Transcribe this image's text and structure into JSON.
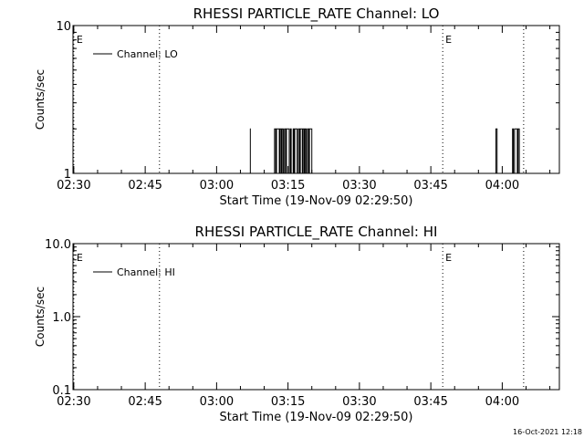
{
  "chart_data": [
    {
      "type": "line",
      "title": "RHESSI PARTICLE_RATE Channel: LO",
      "xlabel": "Start Time (19-Nov-09 02:29:50)",
      "ylabel": "Counts/sec",
      "y_scale": "log",
      "ylim": [
        1,
        10
      ],
      "y_tick_labels": [
        "1",
        "10"
      ],
      "x_range": [
        "02:29:50",
        "04:12:00"
      ],
      "x_tick_labels": [
        "02:30",
        "02:45",
        "03:00",
        "03:15",
        "03:30",
        "03:45",
        "04:00"
      ],
      "legend": "Channel: LO",
      "legend_position": "top-left",
      "event_lines": [
        {
          "label": "E",
          "time": "02:30:00"
        },
        {
          "label": "",
          "time": "02:48:00"
        },
        {
          "label": "E",
          "time": "03:47:30"
        },
        {
          "label": "",
          "time": "04:04:30"
        }
      ],
      "series": [
        {
          "name": "Channel: LO",
          "x": [
            "03:07:00",
            "03:07:05",
            "03:07:25",
            "03:12:00",
            "03:12:10",
            "03:12:25",
            "03:12:35",
            "03:13:10",
            "03:13:20",
            "03:13:35",
            "03:13:45",
            "03:14:00",
            "03:14:15",
            "03:14:30",
            "03:14:40",
            "03:15:00",
            "03:15:15",
            "03:15:30",
            "03:15:40",
            "03:16:05",
            "03:16:15",
            "03:16:25",
            "03:16:40",
            "03:16:55",
            "03:17:10",
            "03:17:25",
            "03:17:35",
            "03:18:00",
            "03:18:10",
            "03:18:25",
            "03:18:35",
            "03:18:50",
            "03:19:05",
            "03:19:20",
            "03:19:30",
            "03:20:00",
            "03:20:10",
            "03:58:30",
            "03:58:40",
            "03:58:55",
            "03:59:05",
            "04:02:00",
            "04:02:10",
            "04:02:20",
            "04:02:35",
            "04:02:45",
            "04:03:10",
            "04:03:20",
            "04:03:35"
          ],
          "values": [
            2,
            1,
            1,
            1,
            2,
            1,
            2,
            1,
            2,
            1,
            2,
            1,
            2,
            1,
            2,
            2,
            1,
            2,
            1,
            2,
            1,
            2,
            2,
            1,
            2,
            1,
            2,
            1,
            2,
            1,
            2,
            1,
            2,
            1,
            2,
            1,
            1,
            1,
            2,
            1,
            1,
            1,
            2,
            1,
            2,
            2,
            1,
            2,
            1
          ]
        }
      ]
    },
    {
      "type": "line",
      "title": "RHESSI PARTICLE_RATE Channel: HI",
      "xlabel": "Start Time (19-Nov-09 02:29:50)",
      "ylabel": "Counts/sec",
      "y_scale": "log",
      "ylim": [
        0.1,
        10
      ],
      "y_tick_labels": [
        "0.1",
        "1.0",
        "10.0"
      ],
      "x_range": [
        "02:29:50",
        "04:12:00"
      ],
      "x_tick_labels": [
        "02:30",
        "02:45",
        "03:00",
        "03:15",
        "03:30",
        "03:45",
        "04:00"
      ],
      "legend": "Channel: HI",
      "legend_position": "top-left",
      "event_lines": [
        {
          "label": "E",
          "time": "02:30:00"
        },
        {
          "label": "",
          "time": "02:48:00"
        },
        {
          "label": "E",
          "time": "03:47:30"
        },
        {
          "label": "",
          "time": "04:04:30"
        }
      ],
      "series": [
        {
          "name": "Channel: HI",
          "x": [],
          "values": []
        }
      ]
    }
  ],
  "footer": {
    "timestamp": "16-Oct-2021 12:18"
  }
}
